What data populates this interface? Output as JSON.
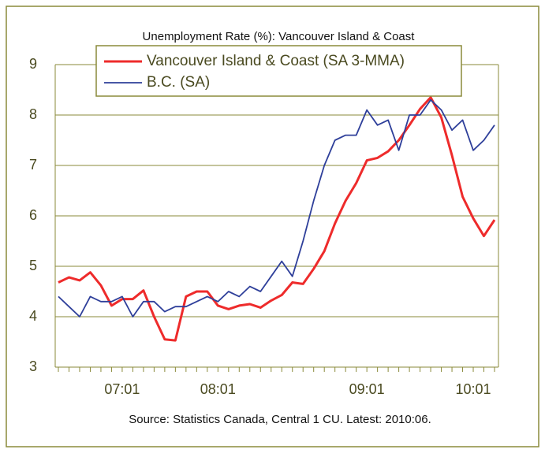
{
  "chart_data": {
    "type": "line",
    "title": "Unemployment Rate (%): Vancouver Island & Coast",
    "source": "Source: Statistics Canada, Central 1 CU. Latest: 2010:06.",
    "categories": [
      null,
      null,
      null,
      null,
      null,
      null,
      "07:01",
      null,
      null,
      null,
      null,
      null,
      null,
      null,
      null,
      "08:01",
      null,
      null,
      null,
      null,
      null,
      null,
      null,
      null,
      null,
      null,
      null,
      null,
      null,
      "09:01",
      null,
      null,
      null,
      null,
      null,
      null,
      null,
      null,
      null,
      "10:01",
      null,
      null
    ],
    "series": [
      {
        "name": "Vancouver Island & Coast (SA 3-MMA)",
        "color": "#ee2b2b",
        "width": 3,
        "values": [
          4.68,
          4.78,
          4.72,
          4.88,
          4.62,
          4.22,
          4.35,
          4.35,
          4.52,
          4.0,
          3.55,
          3.53,
          4.4,
          4.5,
          4.5,
          4.22,
          4.15,
          4.22,
          4.25,
          4.18,
          4.32,
          4.43,
          4.68,
          4.65,
          4.95,
          5.3,
          5.85,
          6.3,
          6.65,
          7.1,
          7.15,
          7.28,
          7.5,
          7.8,
          8.12,
          8.35,
          7.95,
          7.2,
          6.38,
          5.95,
          5.6,
          5.92
        ]
      },
      {
        "name": "B.C. (SA)",
        "color": "#2e3f9a",
        "width": 1.8,
        "values": [
          4.4,
          4.2,
          4.0,
          4.4,
          4.3,
          4.3,
          4.4,
          4.0,
          4.3,
          4.3,
          4.1,
          4.2,
          4.2,
          4.3,
          4.4,
          4.3,
          4.5,
          4.4,
          4.6,
          4.5,
          4.8,
          5.1,
          4.8,
          5.5,
          6.3,
          7.0,
          7.5,
          7.6,
          7.6,
          8.1,
          7.8,
          7.9,
          7.3,
          8.0,
          8.0,
          8.3,
          8.1,
          7.7,
          7.9,
          7.3,
          7.5,
          7.8
        ]
      }
    ],
    "ylim": [
      3,
      9
    ],
    "yticks": [
      3,
      4,
      5,
      6,
      7,
      8,
      9
    ],
    "grid": true
  }
}
